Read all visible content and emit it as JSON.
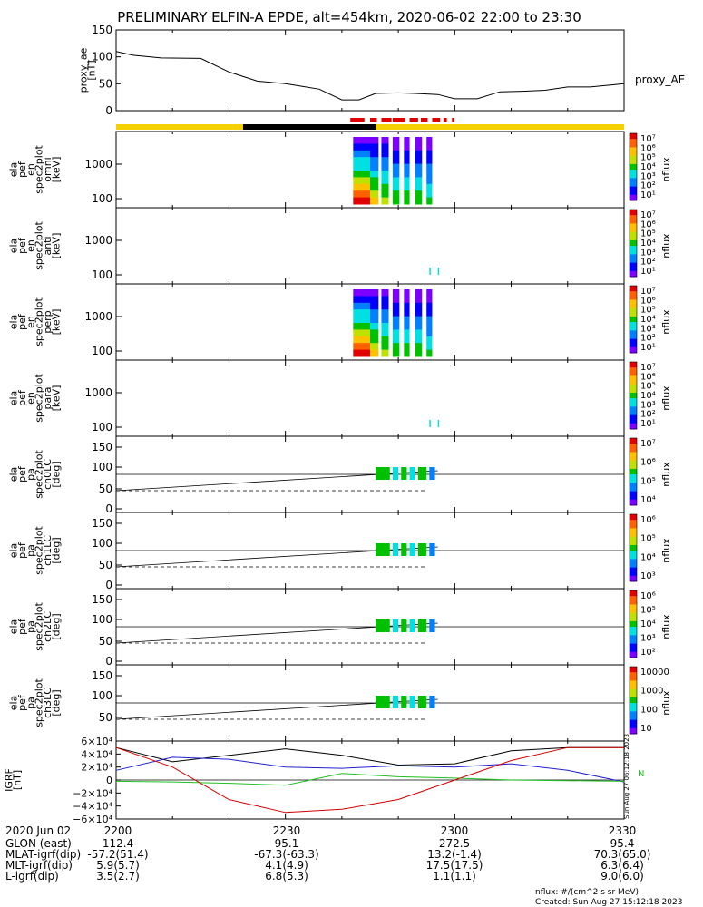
{
  "title": "PRELIMINARY ELFIN-A EPDE, alt=454km, 2020-06-02 22:00 to 23:30",
  "legend_label": "proxy_AE",
  "colors": {
    "yellow_bar": "#f5d000",
    "black_bar": "#000000",
    "red_marks": "#e00000",
    "gsm_x": "#000000",
    "gsm_y": "#2020d0",
    "gsm_z": "#20c020",
    "gsm_r": "#d00000"
  },
  "panels": [
    {
      "ylabel": [
        "ela",
        "pef",
        "en",
        "spec2plot",
        "omni",
        "[keV]"
      ],
      "yticks": [
        "1000",
        "100"
      ],
      "cblabel": "nflux",
      "cbticks": [
        "10⁷",
        "10⁶",
        "10⁵",
        "10⁴",
        "10³",
        "10²",
        "10¹"
      ]
    },
    {
      "ylabel": [
        "ela",
        "pef",
        "en",
        "spec2plot",
        "anti",
        "[keV]"
      ],
      "yticks": [
        "1000",
        "100"
      ],
      "cblabel": "nflux",
      "cbticks": [
        "10⁷",
        "10⁶",
        "10⁵",
        "10⁴",
        "10³",
        "10²",
        "10¹"
      ]
    },
    {
      "ylabel": [
        "ela",
        "pef",
        "en",
        "spec2plot",
        "perp",
        "[keV]"
      ],
      "yticks": [
        "1000",
        "100"
      ],
      "cblabel": "nflux",
      "cbticks": [
        "10⁷",
        "10⁶",
        "10⁵",
        "10⁴",
        "10³",
        "10²",
        "10¹"
      ]
    },
    {
      "ylabel": [
        "ela",
        "pef",
        "en",
        "spec2plot",
        "para",
        "[keV]"
      ],
      "yticks": [
        "1000",
        "100"
      ],
      "cblabel": "nflux",
      "cbticks": [
        "10⁷",
        "10⁶",
        "10⁵",
        "10⁴",
        "10³",
        "10²",
        "10¹"
      ]
    },
    {
      "ylabel": [
        "ela",
        "pef",
        "pa",
        "spec2plot",
        "ch0LC",
        "[deg]"
      ],
      "yticks": [
        "150",
        "100",
        "50",
        "0"
      ],
      "cblabel": "nflux",
      "cbticks": [
        "10⁷",
        "10⁶",
        "10⁵",
        "10⁴"
      ]
    },
    {
      "ylabel": [
        "ela",
        "pef",
        "pa",
        "spec2plot",
        "ch1LC",
        "[deg]"
      ],
      "yticks": [
        "150",
        "100",
        "50",
        "0"
      ],
      "cblabel": "nflux",
      "cbticks": [
        "10⁶",
        "10⁵",
        "10⁴",
        "10³"
      ]
    },
    {
      "ylabel": [
        "ela",
        "pef",
        "pa",
        "spec2plot",
        "ch2LC",
        "[deg]"
      ],
      "yticks": [
        "150",
        "100",
        "50",
        "0"
      ],
      "cblabel": "nflux",
      "cbticks": [
        "10⁶",
        "10⁵",
        "10⁴",
        "10³",
        "10²"
      ]
    },
    {
      "ylabel": [
        "ela",
        "pef",
        "pa",
        "spec2plot",
        "ch3LC",
        "[deg]"
      ],
      "yticks": [
        "150",
        "100",
        "50"
      ],
      "cblabel": "nflux",
      "cbticks": [
        "10000",
        "1000",
        "100",
        "10"
      ]
    }
  ],
  "igrf_panel": {
    "ylabel": [
      "IGRF",
      "[nT]"
    ],
    "yticks": [
      "6×10⁴",
      "4×10⁴",
      "2×10⁴",
      "0",
      "−2×10⁴",
      "−4×10⁴",
      "−6×10⁴"
    ],
    "side_labels": [
      "N"
    ],
    "stamp": "Sun Aug 27 06:12:18 2023"
  },
  "chart_data": [
    {
      "type": "line",
      "name": "proxy_AE",
      "ylabel": "proxy_ae [nT]",
      "ylim": [
        0,
        150
      ],
      "yticks": [
        "150",
        "100",
        "50",
        "0"
      ],
      "x_minutes": [
        0,
        3,
        8,
        15,
        20,
        25,
        30,
        33,
        36,
        40,
        43,
        46,
        50,
        53,
        57,
        60,
        64,
        68,
        72,
        76,
        80,
        84,
        88,
        90
      ],
      "values": [
        110,
        103,
        98,
        97,
        72,
        55,
        50,
        45,
        40,
        20,
        20,
        32,
        33,
        32,
        30,
        22,
        22,
        35,
        36,
        38,
        44,
        44,
        48,
        50
      ],
      "color": "#000000"
    },
    {
      "type": "line",
      "name": "IGRF",
      "ylim": [
        -60000,
        60000
      ],
      "x_minutes": [
        0,
        10,
        20,
        30,
        40,
        50,
        60,
        70,
        80,
        90
      ],
      "series": [
        {
          "values": [
            50000,
            28000,
            38000,
            48000,
            38000,
            23000,
            25000,
            45000,
            50000,
            50000
          ]
        },
        {
          "values": [
            15000,
            35000,
            32000,
            20000,
            18000,
            22000,
            20000,
            25000,
            15000,
            -3000
          ]
        },
        {
          "values": [
            -2000,
            -3000,
            -5000,
            -8000,
            10000,
            5000,
            3000,
            0,
            -1000,
            -2000
          ]
        },
        {
          "values": [
            50000,
            20000,
            -30000,
            -50000,
            -45000,
            -30000,
            0,
            30000,
            50000,
            50000
          ]
        }
      ]
    }
  ],
  "footer": {
    "rows": [
      {
        "label": "2020 Jun 02",
        "values": [
          "2200",
          "2230",
          "2300",
          "2330"
        ]
      },
      {
        "label": "GLON (east)",
        "values": [
          "112.4",
          "95.1",
          "272.5",
          "95.4"
        ]
      },
      {
        "label": "MLAT-igrf(dip)",
        "values": [
          "-57.2(51.4)",
          "-67.3(-63.3)",
          "13.2(-1.4)",
          "70.3(65.0)"
        ]
      },
      {
        "label": "MLT-igrf(dip)",
        "values": [
          "5.9(5.7)",
          "4.1(4.9)",
          "17.5(17.5)",
          "6.3(6.4)"
        ]
      },
      {
        "label": "L-igrf(dip)",
        "values": [
          "3.5(2.7)",
          "6.8(5.3)",
          "1.1(1.1)",
          "9.0(6.0)"
        ]
      }
    ],
    "units_note": "nflux: #/(cm^2 s sr MeV)",
    "created": "Created: Sun Aug 27 15:12:18 2023"
  }
}
